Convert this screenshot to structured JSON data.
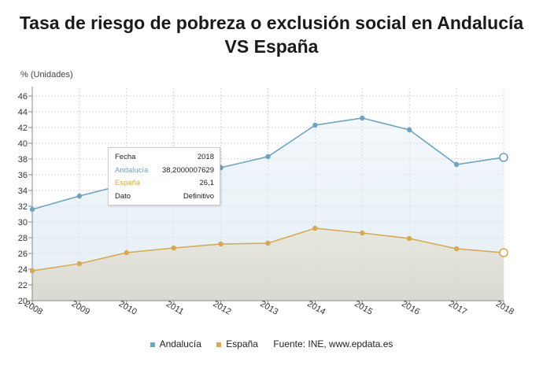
{
  "title_line1": "Tasa de riesgo de pobreza o exclusión social en Andalucía",
  "title_line2": "VS España",
  "chart_data": {
    "type": "line",
    "title": "Tasa de riesgo de pobreza o exclusión social en Andalucía VS España",
    "ylabel": "% (Unidades)",
    "xlabel": "",
    "x": [
      "2008",
      "2009",
      "2010",
      "2011",
      "2012",
      "2013",
      "2014",
      "2015",
      "2016",
      "2017",
      "2018"
    ],
    "ylim": [
      20,
      47
    ],
    "yticks": [
      20,
      22,
      24,
      26,
      28,
      30,
      32,
      34,
      36,
      38,
      40,
      42,
      44,
      46
    ],
    "grid": true,
    "legend_position": "bottom",
    "series": [
      {
        "name": "Andalucía",
        "color": "#6fa3bf",
        "values": [
          31.6,
          33.3,
          34.8,
          35.7,
          36.9,
          38.3,
          42.3,
          43.2,
          41.7,
          37.3,
          38.2
        ]
      },
      {
        "name": "España",
        "color": "#d4aa52",
        "values": [
          23.8,
          24.7,
          26.1,
          26.7,
          27.2,
          27.3,
          29.2,
          28.6,
          27.9,
          26.6,
          26.1
        ]
      }
    ],
    "tooltip": {
      "rows": [
        {
          "label": "Fecha",
          "value": "2018",
          "color": "#222222"
        },
        {
          "label": "Andalucía",
          "value": "38,2000007629",
          "color": "#6fa3bf"
        },
        {
          "label": "España",
          "value": "26,1",
          "color": "#d4aa52"
        },
        {
          "label": "Dato",
          "value": "Definitivo",
          "color": "#222222"
        }
      ]
    }
  },
  "legend": {
    "items": [
      {
        "label": "Andalucía",
        "color": "#6fa3bf"
      },
      {
        "label": "España",
        "color": "#d4aa52"
      }
    ],
    "source": "Fuente: INE, www.epdata.es"
  }
}
